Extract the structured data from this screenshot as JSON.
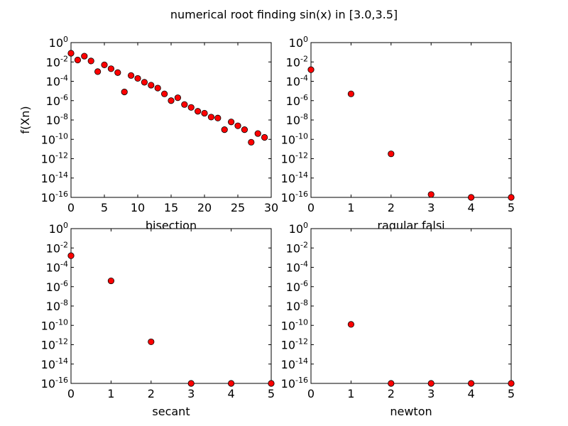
{
  "figure": {
    "title": "numerical root finding sin(x) in [3.0,3.5]",
    "marker_color": "#ff0000",
    "marker_edge_color": "#000000"
  },
  "chart_data": [
    {
      "type": "scatter",
      "xlabel": "bisection",
      "ylabel": "f(Xn)",
      "xlim": [
        0,
        30
      ],
      "ylim_exponent": [
        -16,
        0
      ],
      "yscale": "log",
      "x_ticks": [
        "0",
        "5",
        "10",
        "15",
        "20",
        "25",
        "30"
      ],
      "x_tick_values": [
        0,
        5,
        10,
        15,
        20,
        25,
        30
      ],
      "y_tick_exponents": [
        0,
        -2,
        -4,
        -6,
        -8,
        -10,
        -12,
        -14,
        -16
      ],
      "y_tick_labels": [
        "0",
        "-2",
        "-4",
        "-6",
        "-8",
        "-10",
        "-12",
        "-14",
        "-16"
      ],
      "points": [
        {
          "x": 0,
          "y_exp": -1.1
        },
        {
          "x": 1,
          "y_exp": -1.8
        },
        {
          "x": 2,
          "y_exp": -1.4
        },
        {
          "x": 3,
          "y_exp": -1.9
        },
        {
          "x": 4,
          "y_exp": -3.0
        },
        {
          "x": 5,
          "y_exp": -2.3
        },
        {
          "x": 6,
          "y_exp": -2.7
        },
        {
          "x": 7,
          "y_exp": -3.1
        },
        {
          "x": 8,
          "y_exp": -5.1
        },
        {
          "x": 9,
          "y_exp": -3.4
        },
        {
          "x": 10,
          "y_exp": -3.7
        },
        {
          "x": 11,
          "y_exp": -4.1
        },
        {
          "x": 12,
          "y_exp": -4.4
        },
        {
          "x": 13,
          "y_exp": -4.7
        },
        {
          "x": 14,
          "y_exp": -5.3
        },
        {
          "x": 15,
          "y_exp": -6.0
        },
        {
          "x": 16,
          "y_exp": -5.7
        },
        {
          "x": 17,
          "y_exp": -6.4
        },
        {
          "x": 18,
          "y_exp": -6.7
        },
        {
          "x": 19,
          "y_exp": -7.1
        },
        {
          "x": 20,
          "y_exp": -7.3
        },
        {
          "x": 21,
          "y_exp": -7.7
        },
        {
          "x": 22,
          "y_exp": -7.8
        },
        {
          "x": 23,
          "y_exp": -9.0
        },
        {
          "x": 24,
          "y_exp": -8.2
        },
        {
          "x": 25,
          "y_exp": -8.6
        },
        {
          "x": 26,
          "y_exp": -9.0
        },
        {
          "x": 27,
          "y_exp": -10.3
        },
        {
          "x": 28,
          "y_exp": -9.4
        },
        {
          "x": 29,
          "y_exp": -9.8
        }
      ]
    },
    {
      "type": "scatter",
      "xlabel": "ragular falsi",
      "ylabel": "",
      "xlim": [
        0,
        5
      ],
      "ylim_exponent": [
        -16,
        0
      ],
      "yscale": "log",
      "x_ticks": [
        "0",
        "1",
        "2",
        "3",
        "4",
        "5"
      ],
      "x_tick_values": [
        0,
        1,
        2,
        3,
        4,
        5
      ],
      "y_tick_exponents": [
        0,
        -2,
        -4,
        -6,
        -8,
        -10,
        -12,
        -14,
        -16
      ],
      "y_tick_labels": [
        "0",
        "-2",
        "-4",
        "-6",
        "-8",
        "-10",
        "-12",
        "-14",
        "-16"
      ],
      "points": [
        {
          "x": 0,
          "y_exp": -2.8
        },
        {
          "x": 1,
          "y_exp": -5.3
        },
        {
          "x": 2,
          "y_exp": -11.5
        },
        {
          "x": 3,
          "y_exp": -15.7
        },
        {
          "x": 4,
          "y_exp": -16.0
        },
        {
          "x": 5,
          "y_exp": -16.0
        }
      ]
    },
    {
      "type": "scatter",
      "xlabel": "secant",
      "ylabel": "",
      "xlim": [
        0,
        5
      ],
      "ylim_exponent": [
        -16,
        0
      ],
      "yscale": "log",
      "x_ticks": [
        "0",
        "1",
        "2",
        "3",
        "4",
        "5"
      ],
      "x_tick_values": [
        0,
        1,
        2,
        3,
        4,
        5
      ],
      "y_tick_exponents": [
        0,
        -2,
        -4,
        -6,
        -8,
        -10,
        -12,
        -14,
        -16
      ],
      "y_tick_labels": [
        "0",
        "-2",
        "-4",
        "-6",
        "-8",
        "-10",
        "-12",
        "-14",
        "-16"
      ],
      "points": [
        {
          "x": 0,
          "y_exp": -2.8
        },
        {
          "x": 1,
          "y_exp": -5.4
        },
        {
          "x": 2,
          "y_exp": -11.7
        },
        {
          "x": 3,
          "y_exp": -16.0
        },
        {
          "x": 4,
          "y_exp": -16.0
        },
        {
          "x": 5,
          "y_exp": -16.0
        }
      ]
    },
    {
      "type": "scatter",
      "xlabel": "newton",
      "ylabel": "",
      "xlim": [
        0,
        5
      ],
      "ylim_exponent": [
        -16,
        0
      ],
      "yscale": "log",
      "x_ticks": [
        "0",
        "1",
        "2",
        "3",
        "4",
        "5"
      ],
      "x_tick_values": [
        0,
        1,
        2,
        3,
        4,
        5
      ],
      "y_tick_exponents": [
        0,
        -2,
        -4,
        -6,
        -8,
        -10,
        -12,
        -14,
        -16
      ],
      "y_tick_labels": [
        "0",
        "-2",
        "-4",
        "-6",
        "-8",
        "-10",
        "-12",
        "-14",
        "-16"
      ],
      "points": [
        {
          "x": 1,
          "y_exp": -9.9
        },
        {
          "x": 2,
          "y_exp": -16.0
        },
        {
          "x": 3,
          "y_exp": -16.0
        },
        {
          "x": 4,
          "y_exp": -16.0
        },
        {
          "x": 5,
          "y_exp": -16.0
        }
      ]
    }
  ]
}
